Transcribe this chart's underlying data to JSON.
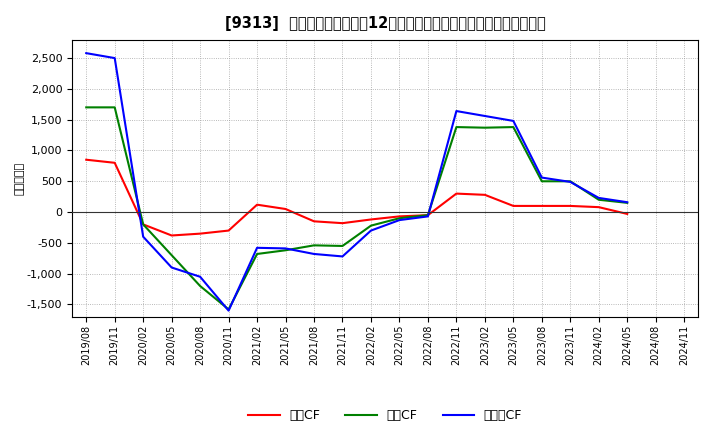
{
  "title": "[9313]  キャッシュフローの12か月移動合計の対前年同期増減額の推移",
  "ylabel": "（百万円）",
  "background_color": "#ffffff",
  "plot_bg_color": "#ffffff",
  "grid_color": "#999999",
  "xlabels": [
    "2019/08",
    "2019/11",
    "2020/02",
    "2020/05",
    "2020/08",
    "2020/11",
    "2021/02",
    "2021/05",
    "2021/08",
    "2021/11",
    "2022/02",
    "2022/05",
    "2022/08",
    "2022/11",
    "2023/02",
    "2023/05",
    "2023/08",
    "2023/11",
    "2024/02",
    "2024/05",
    "2024/08",
    "2024/11"
  ],
  "operating_cf": [
    850,
    800,
    -200,
    -380,
    -350,
    -300,
    120,
    50,
    -150,
    -180,
    -120,
    -70,
    -50,
    300,
    280,
    100,
    100,
    100,
    80,
    -30,
    null,
    null
  ],
  "investing_cf": [
    1700,
    1700,
    -200,
    -700,
    -1200,
    -1580,
    -680,
    -620,
    -540,
    -550,
    -220,
    -100,
    -50,
    1380,
    1370,
    1380,
    500,
    500,
    200,
    150,
    null,
    null
  ],
  "free_cf": [
    2580,
    2500,
    -400,
    -900,
    -1050,
    -1600,
    -580,
    -590,
    -680,
    -720,
    -300,
    -130,
    -70,
    1640,
    1560,
    1480,
    560,
    490,
    230,
    160,
    null,
    null
  ],
  "operating_color": "#ff0000",
  "investing_color": "#008000",
  "free_color": "#0000ff",
  "ylim": [
    -1700,
    2800
  ],
  "yticks": [
    -1500,
    -1000,
    -500,
    0,
    500,
    1000,
    1500,
    2000,
    2500
  ],
  "legend_labels": [
    "営業CF",
    "投資CF",
    "フリーCF"
  ]
}
